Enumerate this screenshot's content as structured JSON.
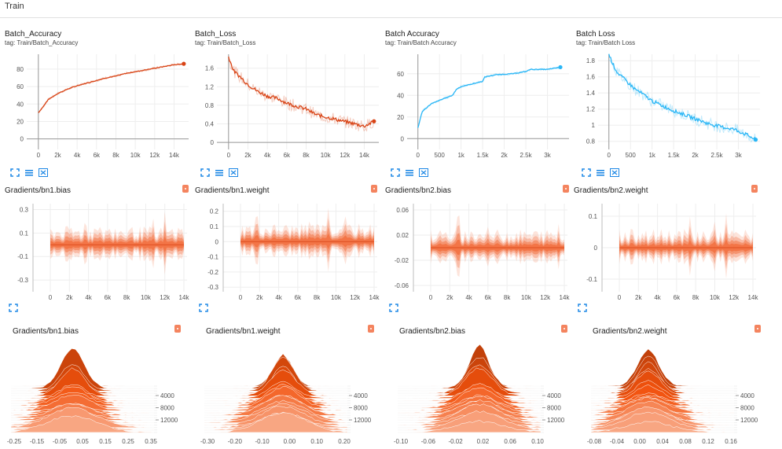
{
  "section": {
    "title": "Train"
  },
  "colors": {
    "orange": "#d84315",
    "blue": "#29b6f6",
    "gridline": "#eeeeee",
    "dist_light": "#fbe3d8",
    "dist_dark": "#f4845f"
  },
  "icons": [
    "fit-to-screen-icon",
    "toggle-y-log-icon",
    "fit-domain-icon",
    "download-menu-icon"
  ],
  "scalars": [
    {
      "title": "Batch_Accuracy",
      "tag": "tag: Train/Batch_Accuracy",
      "color": "orange",
      "chart_data": {
        "type": "line",
        "x_ticks": [
          "0",
          "2k",
          "4k",
          "6k",
          "8k",
          "10k",
          "12k",
          "14k"
        ],
        "y_ticks": [
          "0",
          "20",
          "40",
          "60",
          "80"
        ],
        "xlim": [
          -1200,
          15500
        ],
        "ylim": [
          -12,
          97
        ],
        "x": [
          0,
          500,
          1000,
          2000,
          3000,
          4000,
          5000,
          6000,
          7000,
          8000,
          9000,
          10000,
          11000,
          12000,
          13000,
          14000,
          15000
        ],
        "y": [
          30,
          37,
          45,
          52,
          57,
          61,
          64,
          67,
          70,
          72,
          75,
          77,
          79,
          81,
          83,
          85,
          86
        ]
      }
    },
    {
      "title": "Batch_Loss",
      "tag": "tag: Train/Batch_Loss",
      "color": "orange",
      "chart_data": {
        "type": "line",
        "x_ticks": [
          "0",
          "2k",
          "4k",
          "6k",
          "8k",
          "10k",
          "12k",
          "14k"
        ],
        "y_ticks": [
          "0",
          "0.4",
          "0.8",
          "1.2",
          "1.6"
        ],
        "xlim": [
          -1200,
          15500
        ],
        "ylim": [
          -0.15,
          1.9
        ],
        "x": [
          0,
          500,
          1000,
          2000,
          3000,
          4000,
          5000,
          6000,
          7000,
          8000,
          9000,
          10000,
          11000,
          12000,
          13000,
          14000,
          15000
        ],
        "y": [
          1.85,
          1.55,
          1.45,
          1.25,
          1.1,
          1.0,
          0.95,
          0.85,
          0.78,
          0.72,
          0.6,
          0.55,
          0.5,
          0.45,
          0.4,
          0.35,
          0.45
        ]
      }
    },
    {
      "title": "Batch Accuracy",
      "tag": "tag: Train/Batch Accuracy",
      "color": "blue",
      "chart_data": {
        "type": "line",
        "x_ticks": [
          "0",
          "500",
          "1k",
          "1.5k",
          "2k",
          "2.5k",
          "3k"
        ],
        "y_ticks": [
          "0",
          "20",
          "40",
          "60"
        ],
        "xlim": [
          -250,
          3500
        ],
        "ylim": [
          -10,
          78
        ],
        "x": [
          0,
          100,
          300,
          600,
          800,
          900,
          1000,
          1200,
          1500,
          1550,
          1800,
          2200,
          2500,
          2600,
          3000,
          3300
        ],
        "y": [
          10,
          25,
          32,
          37,
          40,
          46,
          48,
          50,
          53,
          57,
          59,
          60,
          62,
          64,
          64,
          66
        ]
      }
    },
    {
      "title": "Batch Loss",
      "tag": "tag: Train/Batch Loss",
      "color": "blue",
      "chart_data": {
        "type": "line",
        "x_ticks": [
          "0",
          "500",
          "1k",
          "1.5k",
          "2k",
          "2.5k",
          "3k"
        ],
        "y_ticks": [
          "0.8",
          "1",
          "1.2",
          "1.4",
          "1.6",
          "1.8"
        ],
        "xlim": [
          -250,
          3500
        ],
        "ylim": [
          0.7,
          1.88
        ],
        "x": [
          0,
          100,
          200,
          400,
          600,
          800,
          1000,
          1200,
          1500,
          1800,
          2000,
          2300,
          2600,
          2900,
          3200,
          3400
        ],
        "y": [
          1.88,
          1.75,
          1.65,
          1.55,
          1.45,
          1.38,
          1.3,
          1.25,
          1.18,
          1.12,
          1.08,
          1.02,
          0.98,
          0.95,
          0.88,
          0.82
        ]
      }
    }
  ],
  "distributions": [
    {
      "title": "Gradients/bn1.bias",
      "x_ticks": [
        "0",
        "2k",
        "4k",
        "6k",
        "8k",
        "10k",
        "12k",
        "14k"
      ],
      "y_ticks": [
        "0.3",
        "0.1",
        "-0.1",
        "-0.3"
      ],
      "ylim": [
        -0.4,
        0.35
      ],
      "spread": 0.08
    },
    {
      "title": "Gradients/bn1.weight",
      "x_ticks": [
        "0",
        "2k",
        "4k",
        "6k",
        "8k",
        "10k",
        "12k",
        "14k"
      ],
      "y_ticks": [
        "0.2",
        "0.1",
        "0",
        "-0.1",
        "-0.2",
        "-0.3"
      ],
      "ylim": [
        -0.33,
        0.25
      ],
      "spread": 0.06
    },
    {
      "title": "Gradients/bn2.bias",
      "x_ticks": [
        "0",
        "2k",
        "4k",
        "6k",
        "8k",
        "10k",
        "12k",
        "14k"
      ],
      "y_ticks": [
        "0.06",
        "0.02",
        "-0.02",
        "-0.06"
      ],
      "ylim": [
        -0.07,
        0.07
      ],
      "spread": 0.015
    },
    {
      "title": "Gradients/bn2.weight",
      "x_ticks": [
        "0",
        "2k",
        "4k",
        "6k",
        "8k",
        "10k",
        "12k",
        "14k"
      ],
      "y_ticks": [
        "0.1",
        "0",
        "-0.1"
      ],
      "ylim": [
        -0.14,
        0.14
      ],
      "spread": 0.03
    }
  ],
  "histograms": [
    {
      "title": "Gradients/bn1.bias",
      "x_ticks": [
        "-0.25",
        "-0.15",
        "-0.05",
        "0.05",
        "0.15",
        "0.25",
        "0.35"
      ],
      "y_ticks": [
        "4000",
        "8000",
        "12000"
      ]
    },
    {
      "title": "Gradients/bn1.weight",
      "x_ticks": [
        "-0.30",
        "-0.20",
        "-0.10",
        "0.00",
        "0.10",
        "0.20"
      ],
      "y_ticks": [
        "4000",
        "8000",
        "12000"
      ]
    },
    {
      "title": "Gradients/bn2.bias",
      "x_ticks": [
        "-0.10",
        "-0.06",
        "-0.02",
        "0.02",
        "0.06",
        "0.10"
      ],
      "y_ticks": [
        "4000",
        "8000",
        "12000"
      ]
    },
    {
      "title": "Gradients/bn2.weight",
      "x_ticks": [
        "-0.08",
        "-0.04",
        "0.00",
        "0.04",
        "0.08",
        "0.12",
        "0.16"
      ],
      "y_ticks": [
        "4000",
        "8000",
        "12000"
      ]
    }
  ]
}
